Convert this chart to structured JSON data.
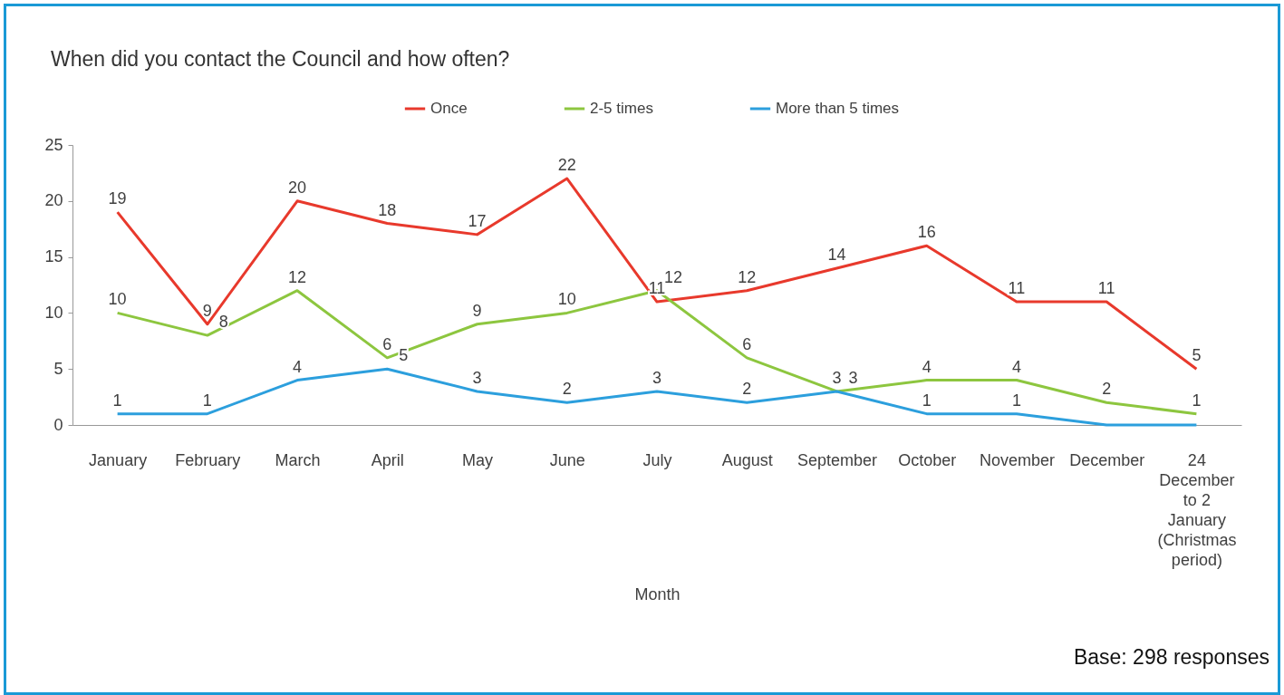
{
  "chart_data": {
    "type": "line",
    "title": "When did you contact the Council and how often?",
    "xlabel": "Month",
    "categories": [
      "January",
      "February",
      "March",
      "April",
      "May",
      "June",
      "July",
      "August",
      "September",
      "October",
      "November",
      "December",
      "24 December to 2 January (Christmas period)"
    ],
    "series": [
      {
        "name": "Once",
        "color": "#e8392c",
        "values": [
          19,
          9,
          20,
          18,
          17,
          22,
          11,
          12,
          14,
          16,
          11,
          11,
          5
        ],
        "value_labels": [
          "19",
          "9",
          "20",
          "18",
          "17",
          "22",
          "11",
          "12",
          "14",
          "16",
          "11",
          "11",
          "5"
        ]
      },
      {
        "name": "2-5 times",
        "color": "#8dc63f",
        "values": [
          10,
          8,
          12,
          6,
          9,
          10,
          12,
          6,
          3,
          4,
          4,
          2,
          1
        ],
        "value_labels": [
          "10",
          "8",
          "12",
          "6",
          "9",
          "10",
          "12",
          "6",
          "3",
          "4",
          "4",
          "2",
          "1"
        ]
      },
      {
        "name": "More than 5 times",
        "color": "#2c9fdd",
        "values": [
          1,
          1,
          4,
          5,
          3,
          2,
          3,
          2,
          3,
          1,
          1,
          0,
          0
        ],
        "value_labels": [
          "1",
          "1",
          "4",
          "5",
          "3",
          "2",
          "3",
          "2",
          "3",
          "1",
          "1",
          null,
          null
        ]
      }
    ],
    "ylim": [
      0,
      25
    ],
    "yticks": [
      0,
      5,
      10,
      15,
      20,
      25
    ],
    "grid": false,
    "legend": "top",
    "marker": "none",
    "line_style": "solid",
    "annotations": [
      "Base: 298 responses"
    ]
  }
}
